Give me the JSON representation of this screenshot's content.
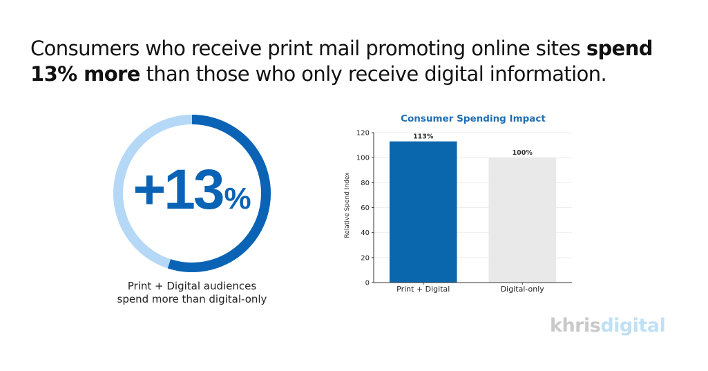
{
  "headline": {
    "part1": "Consumers who receive print mail promoting online sites ",
    "bold": "spend 13% more",
    "part2": " than those who only receive digital information."
  },
  "ring": {
    "value_text": "+13",
    "percent_sign": "%",
    "caption_line1": "Print + Digital audiences",
    "caption_line2": "spend more than digital-only",
    "colors": {
      "arc": "#0a63b5",
      "track": "#b5d8f7"
    }
  },
  "chart_data": {
    "type": "bar",
    "title": "Consumer Spending Impact",
    "xlabel": "",
    "ylabel": "Relative Spend Index",
    "categories": [
      "Print + Digital",
      "Digital-only"
    ],
    "values": [
      113,
      100
    ],
    "data_labels": [
      "113%",
      "100%"
    ],
    "colors": [
      "#0a66ad",
      "#e9e9e9"
    ],
    "ylim": [
      0,
      120
    ],
    "yticks": [
      "0",
      "20",
      "40",
      "60",
      "80",
      "100",
      "120"
    ],
    "grid": true
  },
  "logo": {
    "part1": "khris",
    "part2": "digital"
  }
}
